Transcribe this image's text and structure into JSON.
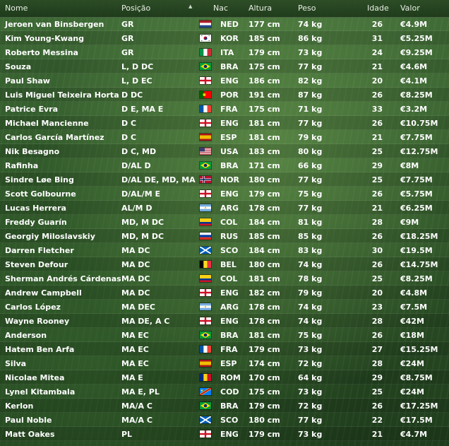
{
  "columns": {
    "name": "Nome",
    "position": "Posição",
    "nationality": "Nac",
    "height": "Altura",
    "weight": "Peso",
    "age": "Idade",
    "value": "Valor"
  },
  "sort_indicator": "▲",
  "players": [
    {
      "name": "Jeroen van Binsbergen",
      "position": "GR",
      "flag": "NED",
      "nat": "NED",
      "height": "177 cm",
      "weight": "74 kg",
      "age": "26",
      "value": "€4.9M"
    },
    {
      "name": "Kim Young-Kwang",
      "position": "GR",
      "flag": "KOR",
      "nat": "KOR",
      "height": "185 cm",
      "weight": "86 kg",
      "age": "31",
      "value": "€5.25M"
    },
    {
      "name": "Roberto Messina",
      "position": "GR",
      "flag": "ITA",
      "nat": "ITA",
      "height": "179 cm",
      "weight": "73 kg",
      "age": "24",
      "value": "€9.25M"
    },
    {
      "name": "Souza",
      "position": "L, D DC",
      "flag": "BRA",
      "nat": "BRA",
      "height": "175 cm",
      "weight": "77 kg",
      "age": "21",
      "value": "€4.6M"
    },
    {
      "name": "Paul Shaw",
      "position": "L, D EC",
      "flag": "ENG",
      "nat": "ENG",
      "height": "186 cm",
      "weight": "82 kg",
      "age": "20",
      "value": "€4.1M"
    },
    {
      "name": "Luis Miguel Teixeira Horta",
      "position": "D DC",
      "flag": "POR",
      "nat": "POR",
      "height": "191 cm",
      "weight": "87 kg",
      "age": "26",
      "value": "€8.25M"
    },
    {
      "name": "Patrice Evra",
      "position": "D E, MA E",
      "flag": "FRA",
      "nat": "FRA",
      "height": "175 cm",
      "weight": "71 kg",
      "age": "33",
      "value": "€3.2M"
    },
    {
      "name": "Michael Mancienne",
      "position": "D C",
      "flag": "ENG",
      "nat": "ENG",
      "height": "181 cm",
      "weight": "77 kg",
      "age": "26",
      "value": "€10.75M"
    },
    {
      "name": "Carlos García Martínez",
      "position": "D C",
      "flag": "ESP",
      "nat": "ESP",
      "height": "181 cm",
      "weight": "79 kg",
      "age": "21",
      "value": "€7.75M"
    },
    {
      "name": "Nik Besagno",
      "position": "D C, MD",
      "flag": "USA",
      "nat": "USA",
      "height": "183 cm",
      "weight": "80 kg",
      "age": "25",
      "value": "€12.75M"
    },
    {
      "name": "Rafinha",
      "position": "D/AL D",
      "flag": "BRA",
      "nat": "BRA",
      "height": "171 cm",
      "weight": "66 kg",
      "age": "29",
      "value": "€8M"
    },
    {
      "name": "Sindre Løe Bing",
      "position": "D/AL DE, MD, MA",
      "flag": "NOR",
      "nat": "NOR",
      "height": "180 cm",
      "weight": "77 kg",
      "age": "25",
      "value": "€7.75M"
    },
    {
      "name": "Scott Golbourne",
      "position": "D/AL/M E",
      "flag": "ENG",
      "nat": "ENG",
      "height": "179 cm",
      "weight": "75 kg",
      "age": "26",
      "value": "€5.75M"
    },
    {
      "name": "Lucas Herrera",
      "position": "AL/M D",
      "flag": "ARG",
      "nat": "ARG",
      "height": "178 cm",
      "weight": "77 kg",
      "age": "21",
      "value": "€6.25M"
    },
    {
      "name": "Freddy Guarín",
      "position": "MD, M DC",
      "flag": "COL",
      "nat": "COL",
      "height": "184 cm",
      "weight": "81 kg",
      "age": "28",
      "value": "€9M"
    },
    {
      "name": "Georgiy Miloslavskiy",
      "position": "MD, M DC",
      "flag": "RUS",
      "nat": "RUS",
      "height": "185 cm",
      "weight": "85 kg",
      "age": "26",
      "value": "€18.25M"
    },
    {
      "name": "Darren Fletcher",
      "position": "MA DC",
      "flag": "SCO",
      "nat": "SCO",
      "height": "184 cm",
      "weight": "83 kg",
      "age": "30",
      "value": "€19.5M"
    },
    {
      "name": "Steven Defour",
      "position": "MA DC",
      "flag": "BEL",
      "nat": "BEL",
      "height": "180 cm",
      "weight": "74 kg",
      "age": "26",
      "value": "€14.75M"
    },
    {
      "name": "Sherman Andrés Cárdenas",
      "position": "MA DC",
      "flag": "COL",
      "nat": "COL",
      "height": "181 cm",
      "weight": "78 kg",
      "age": "25",
      "value": "€8.25M"
    },
    {
      "name": "Andrew Campbell",
      "position": "MA DC",
      "flag": "ENG",
      "nat": "ENG",
      "height": "182 cm",
      "weight": "79 kg",
      "age": "20",
      "value": "€4.8M"
    },
    {
      "name": "Carlos López",
      "position": "MA DEC",
      "flag": "ARG",
      "nat": "ARG",
      "height": "178 cm",
      "weight": "74 kg",
      "age": "23",
      "value": "€7.5M"
    },
    {
      "name": "Wayne Rooney",
      "position": "MA DE, A C",
      "flag": "ENG",
      "nat": "ENG",
      "height": "178 cm",
      "weight": "74 kg",
      "age": "28",
      "value": "€42M"
    },
    {
      "name": "Anderson",
      "position": "MA EC",
      "flag": "BRA",
      "nat": "BRA",
      "height": "181 cm",
      "weight": "75 kg",
      "age": "26",
      "value": "€18M"
    },
    {
      "name": "Hatem Ben Arfa",
      "position": "MA EC",
      "flag": "FRA",
      "nat": "FRA",
      "height": "179 cm",
      "weight": "73 kg",
      "age": "27",
      "value": "€15.25M"
    },
    {
      "name": "Silva",
      "position": "MA EC",
      "flag": "ESP",
      "nat": "ESP",
      "height": "174 cm",
      "weight": "72 kg",
      "age": "28",
      "value": "€24M"
    },
    {
      "name": "Nicolae Mitea",
      "position": "MA E",
      "flag": "ROM",
      "nat": "ROM",
      "height": "170 cm",
      "weight": "64 kg",
      "age": "29",
      "value": "€8.75M"
    },
    {
      "name": "Lynel Kitambala",
      "position": "MA E, PL",
      "flag": "COD",
      "nat": "COD",
      "height": "175 cm",
      "weight": "73 kg",
      "age": "25",
      "value": "€24M"
    },
    {
      "name": "Kerlon",
      "position": "MA/A C",
      "flag": "BRA",
      "nat": "BRA",
      "height": "179 cm",
      "weight": "72 kg",
      "age": "26",
      "value": "€17.25M"
    },
    {
      "name": "Paul Noble",
      "position": "MA/A C",
      "flag": "SCO",
      "nat": "SCO",
      "height": "180 cm",
      "weight": "77 kg",
      "age": "22",
      "value": "€17.5M"
    },
    {
      "name": "Matt Oakes",
      "position": "PL",
      "flag": "ENG",
      "nat": "ENG",
      "height": "179 cm",
      "weight": "73 kg",
      "age": "21",
      "value": "€4.7M"
    }
  ]
}
